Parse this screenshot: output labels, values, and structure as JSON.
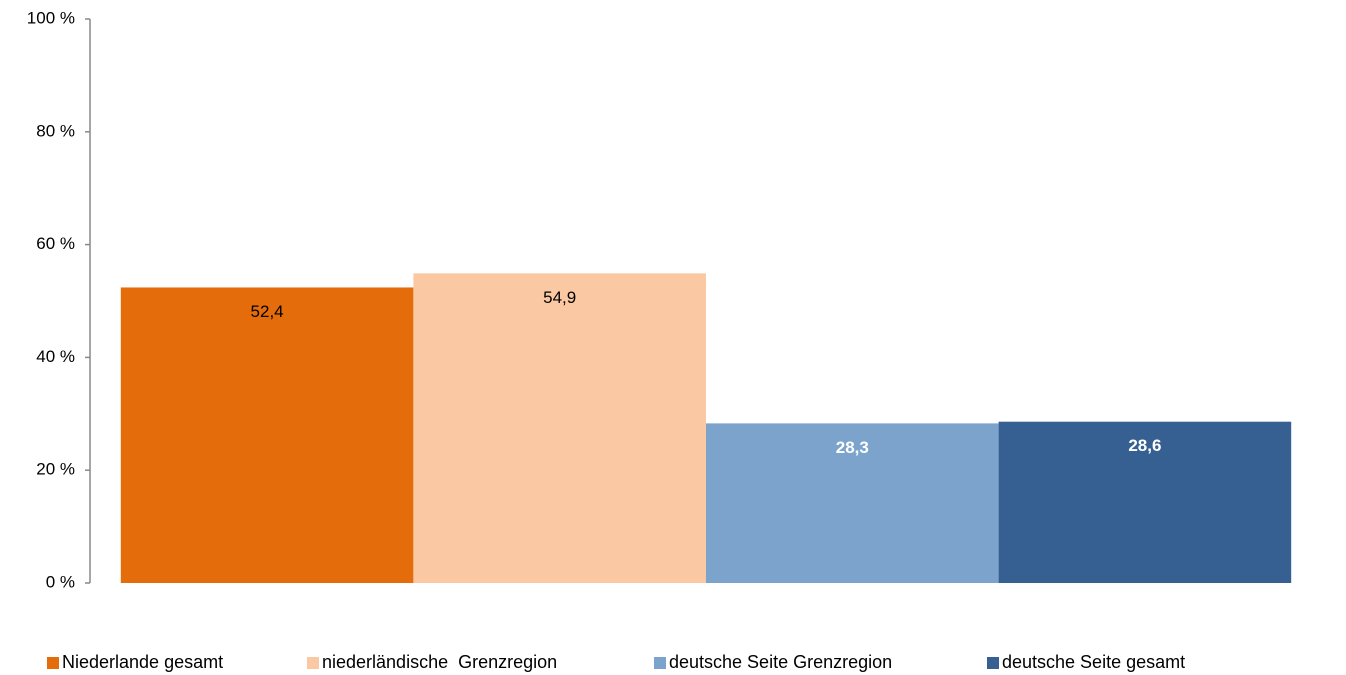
{
  "chart_data": {
    "type": "bar",
    "categories": [
      null
    ],
    "series": [
      {
        "name": "Niederlande gesamt",
        "color": "#e46c0a",
        "label_color": "#000000",
        "values": [
          52.4
        ],
        "value_labels": [
          "52,4"
        ]
      },
      {
        "name": "niederländische  Grenzregion",
        "color": "#fac9a3",
        "label_color": "#000000",
        "values": [
          54.9
        ],
        "value_labels": [
          "54,9"
        ]
      },
      {
        "name": "deutsche Seite Grenzregion",
        "color": "#7ba3cc",
        "label_color": "#ffffff",
        "values": [
          28.3
        ],
        "value_labels": [
          "28,3"
        ]
      },
      {
        "name": "deutsche Seite gesamt",
        "color": "#376092",
        "label_color": "#ffffff",
        "values": [
          28.6
        ],
        "value_labels": [
          "28,6"
        ]
      }
    ],
    "ylim": [
      0,
      100
    ],
    "yticks": [
      {
        "value": 0,
        "label": "0 %"
      },
      {
        "value": 20,
        "label": "20 %"
      },
      {
        "value": 40,
        "label": "40 %"
      },
      {
        "value": 60,
        "label": "60 %"
      },
      {
        "value": 80,
        "label": "80 %"
      },
      {
        "value": 100,
        "label": "100 %"
      }
    ],
    "grid": false,
    "legend": "bottom"
  }
}
